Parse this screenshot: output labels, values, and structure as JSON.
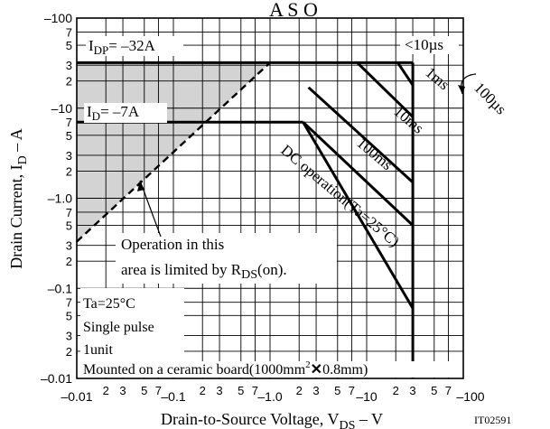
{
  "chart_data": {
    "type": "line",
    "title": "A S O",
    "xlabel": "Drain-to-Source Voltage, VDS – V",
    "xlabel_parts": {
      "main": "Drain-to-Source Voltage, V",
      "sub": "DS",
      "tail": " – V"
    },
    "ylabel": "Drain Current, ID – A",
    "ylabel_parts": {
      "main": "Drain Current, I",
      "sub": "D",
      "tail": " – A"
    },
    "x_scale": "log",
    "y_scale": "log",
    "xlim": [
      -0.01,
      -100
    ],
    "ylim": [
      -0.01,
      -100
    ],
    "grid": true,
    "figure_id": "IT02591",
    "x_major_ticks": [
      {
        "label": "–0.01",
        "value": 0.01
      },
      {
        "label": "–0.1",
        "value": 0.1
      },
      {
        "label": "–1.0",
        "value": 1
      },
      {
        "label": "–10",
        "value": 10
      },
      {
        "label": "–100",
        "value": 100
      }
    ],
    "x_minor_ticks": [
      {
        "label": "2",
        "value": 0.02
      },
      {
        "label": "3",
        "value": 0.03
      },
      {
        "label": "5",
        "value": 0.05
      },
      {
        "label": "7",
        "value": 0.07
      },
      {
        "label": "2",
        "value": 0.2
      },
      {
        "label": "3",
        "value": 0.3
      },
      {
        "label": "5",
        "value": 0.5
      },
      {
        "label": "7",
        "value": 0.7
      },
      {
        "label": "2",
        "value": 2
      },
      {
        "label": "3",
        "value": 3
      },
      {
        "label": "5",
        "value": 5
      },
      {
        "label": "7",
        "value": 7
      },
      {
        "label": "2",
        "value": 20
      },
      {
        "label": "3",
        "value": 30
      },
      {
        "label": "5",
        "value": 50
      },
      {
        "label": "7",
        "value": 70
      }
    ],
    "y_major_ticks": [
      {
        "label": "–0.01",
        "value": 0.01
      },
      {
        "label": "–0.1",
        "value": 0.1
      },
      {
        "label": "–1.0",
        "value": 1
      },
      {
        "label": "–10",
        "value": 10
      },
      {
        "label": "–100",
        "value": 100
      }
    ],
    "y_minor_ticks": [
      {
        "label": "3",
        "value": 0.03
      },
      {
        "label": "2",
        "value": 0.02
      },
      {
        "label": "5",
        "value": 0.05
      },
      {
        "label": "7",
        "value": 0.07
      },
      {
        "label": "2",
        "value": 0.2
      },
      {
        "label": "3",
        "value": 0.3
      },
      {
        "label": "5",
        "value": 0.5
      },
      {
        "label": "7",
        "value": 0.7
      },
      {
        "label": "2",
        "value": 2
      },
      {
        "label": "3",
        "value": 3
      },
      {
        "label": "5",
        "value": 5
      },
      {
        "label": "7",
        "value": 7
      },
      {
        "label": "2",
        "value": 20
      },
      {
        "label": "3",
        "value": 30
      },
      {
        "label": "5",
        "value": 50
      },
      {
        "label": "7",
        "value": 70
      }
    ],
    "series": [
      {
        "name": "IDP= –32A",
        "points": [
          [
            0.01,
            32
          ],
          [
            30,
            32
          ]
        ]
      },
      {
        "name": "ID= –7A",
        "points": [
          [
            0.01,
            7
          ],
          [
            2.2,
            7
          ]
        ]
      },
      {
        "name": "<10µs",
        "points": [
          [
            30,
            32
          ],
          [
            30,
            0.01
          ]
        ]
      },
      {
        "name": "100µs",
        "points": [
          [
            21,
            32
          ],
          [
            30,
            18
          ]
        ]
      },
      {
        "name": "1ms",
        "points": [
          [
            8,
            32
          ],
          [
            30,
            8
          ]
        ]
      },
      {
        "name": "10ms",
        "points": [
          [
            2.5,
            17
          ],
          [
            30,
            1.5
          ]
        ]
      },
      {
        "name": "100ms",
        "points": [
          [
            2.2,
            7
          ],
          [
            30,
            0.5
          ]
        ]
      },
      {
        "name": "DC operation(Ta=25°C)",
        "points": [
          [
            2.2,
            7
          ],
          [
            30,
            0.06
          ]
        ]
      }
    ],
    "rds_on_limit": {
      "label": "Operation in this area is limited by RDS(on).",
      "points": [
        [
          0.01,
          0.33
        ],
        [
          1.0,
          32
        ]
      ],
      "shaded": true
    },
    "labels": {
      "idp": {
        "main": "I",
        "sub": "DP",
        "tail": "= –32A"
      },
      "id": {
        "main": "I",
        "sub": "D",
        "tail": "= –7A"
      },
      "p10us": "<10µs",
      "p100us": "100µs",
      "p1ms": "1ms",
      "p10ms": "10ms",
      "p100ms": "100ms",
      "dc": "DC operation(Ta=25°C)",
      "rds_line1": "Operation in this",
      "rds_line2": {
        "main": "area is limited by R",
        "sub": "DS",
        "tail": "(on)."
      }
    },
    "notes": {
      "line1": "Ta=25°C",
      "line2": "Single pulse",
      "line3": "1unit",
      "line4": {
        "main": "Mounted on a ceramic board(1000mm",
        "sup": "2",
        "mark": "✕",
        "tail": "0.8mm)"
      }
    },
    "colors": {
      "line": "#000000",
      "shade": "#d3d3d3",
      "background": "#ffffff"
    }
  }
}
